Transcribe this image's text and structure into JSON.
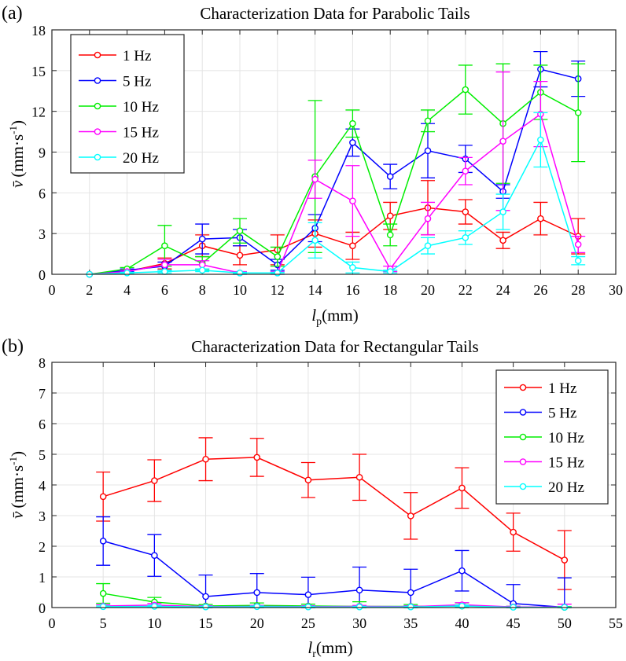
{
  "colors": {
    "1 Hz": "#ff0000",
    "5 Hz": "#0000ff",
    "10 Hz": "#00ee00",
    "15 Hz": "#ff00ff",
    "20 Hz": "#00ffff"
  },
  "chart_data": [
    {
      "panel_label": "(a)",
      "type": "line",
      "title": "Characterization Data for Parabolic Tails",
      "xlabel": {
        "symbol": "l",
        "subscript": "p",
        "unit": "(mm)"
      },
      "ylabel": {
        "symbol": "v̄",
        "unit_prefix": "(mm·s",
        "unit_exponent": "-1",
        "unit_suffix": ")"
      },
      "xlim": [
        0,
        30
      ],
      "ylim": [
        0,
        18
      ],
      "xticks": [
        0,
        2,
        4,
        6,
        8,
        10,
        12,
        14,
        16,
        18,
        20,
        22,
        24,
        26,
        28,
        30
      ],
      "yticks": [
        0,
        3,
        6,
        9,
        12,
        15,
        18
      ],
      "grid": true,
      "legend_position": "top-left",
      "x": [
        2,
        4,
        6,
        8,
        10,
        12,
        14,
        16,
        18,
        20,
        22,
        24,
        26,
        28
      ],
      "series": [
        {
          "name": "1 Hz",
          "values": [
            0,
            0.2,
            0.8,
            2.1,
            1.4,
            1.8,
            3.0,
            2.1,
            4.3,
            4.9,
            4.6,
            2.5,
            4.1,
            2.8
          ],
          "errors": [
            0,
            0.1,
            0.4,
            0.8,
            0.7,
            1.1,
            1.0,
            1.0,
            1.0,
            2.0,
            0.9,
            0.6,
            1.2,
            1.3
          ]
        },
        {
          "name": "5 Hz",
          "values": [
            0,
            0.3,
            0.6,
            2.6,
            2.7,
            0.7,
            3.4,
            9.7,
            7.2,
            9.1,
            8.5,
            6.1,
            15.1,
            14.4
          ],
          "errors": [
            0,
            0.1,
            0.3,
            1.1,
            0.6,
            0.4,
            1.0,
            1.0,
            0.9,
            2.0,
            1.0,
            0.5,
            1.3,
            1.3
          ]
        },
        {
          "name": "10 Hz",
          "values": [
            0,
            0.4,
            2.1,
            0.8,
            3.2,
            1.3,
            7.2,
            11.1,
            2.9,
            11.3,
            13.6,
            11.1,
            13.4,
            11.9
          ],
          "errors": [
            0,
            0.1,
            1.5,
            0.5,
            0.9,
            0.7,
            5.6,
            1.0,
            0.8,
            0.8,
            1.8,
            4.4,
            2.0,
            3.6
          ]
        },
        {
          "name": "15 Hz",
          "values": [
            0,
            0.2,
            0.7,
            0.7,
            0.1,
            0.1,
            7.0,
            5.4,
            0.4,
            4.1,
            7.6,
            9.8,
            11.8,
            2.2
          ],
          "errors": [
            0,
            0.1,
            0.4,
            0.3,
            0.1,
            0.1,
            1.4,
            2.6,
            0.2,
            1.2,
            1.0,
            5.1,
            2.4,
            0.6
          ]
        },
        {
          "name": "20 Hz",
          "values": [
            0,
            0.1,
            0.2,
            0.3,
            0.1,
            0.1,
            2.5,
            0.5,
            0.2,
            2.1,
            2.7,
            4.6,
            9.9,
            1.0
          ],
          "errors": [
            0,
            0.05,
            0.1,
            0.1,
            0.05,
            0.05,
            1.3,
            0.4,
            0.1,
            0.6,
            0.5,
            1.3,
            2.0,
            0.3
          ]
        }
      ]
    },
    {
      "panel_label": "(b)",
      "type": "line",
      "title": "Characterization Data for Rectangular Tails",
      "xlabel": {
        "symbol": "l",
        "subscript": "r",
        "unit": "(mm)"
      },
      "ylabel": {
        "symbol": "v̄",
        "unit_prefix": "(mm·s",
        "unit_exponent": "-1",
        "unit_suffix": ")"
      },
      "xlim": [
        0,
        55
      ],
      "ylim": [
        0,
        8
      ],
      "xticks": [
        0,
        5,
        10,
        15,
        20,
        25,
        30,
        35,
        40,
        45,
        50,
        55
      ],
      "yticks": [
        0,
        1,
        2,
        3,
        4,
        5,
        6,
        7,
        8
      ],
      "grid": true,
      "legend_position": "top-right",
      "x": [
        5,
        10,
        15,
        20,
        25,
        30,
        35,
        40,
        45,
        50
      ],
      "series": [
        {
          "name": "1 Hz",
          "values": [
            3.62,
            4.14,
            4.84,
            4.9,
            4.16,
            4.25,
            2.99,
            3.9,
            2.46,
            1.55
          ],
          "errors": [
            0.8,
            0.68,
            0.7,
            0.62,
            0.57,
            0.75,
            0.76,
            0.66,
            0.62,
            0.96
          ]
        },
        {
          "name": "5 Hz",
          "values": [
            2.17,
            1.7,
            0.36,
            0.49,
            0.42,
            0.57,
            0.49,
            1.2,
            0.13,
            0.01
          ],
          "errors": [
            0.79,
            0.68,
            0.7,
            0.62,
            0.57,
            0.75,
            0.76,
            0.66,
            0.62,
            0.96
          ]
        },
        {
          "name": "10 Hz",
          "values": [
            0.46,
            0.18,
            0.05,
            0.07,
            0.05,
            0.04,
            0.04,
            0.05,
            0.02,
            0.01
          ],
          "errors": [
            0.32,
            0.15,
            0.05,
            0.08,
            0.06,
            0.15,
            0.06,
            0.1,
            0.02,
            0.02
          ]
        },
        {
          "name": "15 Hz",
          "values": [
            0.05,
            0.08,
            0.03,
            0.04,
            0.03,
            0.04,
            0.03,
            0.09,
            0.02,
            0.02
          ],
          "errors": [
            0.04,
            0.05,
            0.03,
            0.03,
            0.03,
            0.03,
            0.03,
            0.07,
            0.02,
            0.09
          ]
        },
        {
          "name": "20 Hz",
          "values": [
            0.03,
            0.04,
            0.02,
            0.03,
            0.02,
            0.02,
            0.02,
            0.05,
            0.01,
            0.01
          ],
          "errors": [
            0.02,
            0.03,
            0.02,
            0.02,
            0.02,
            0.02,
            0.02,
            0.03,
            0.01,
            0.01
          ]
        }
      ]
    }
  ]
}
